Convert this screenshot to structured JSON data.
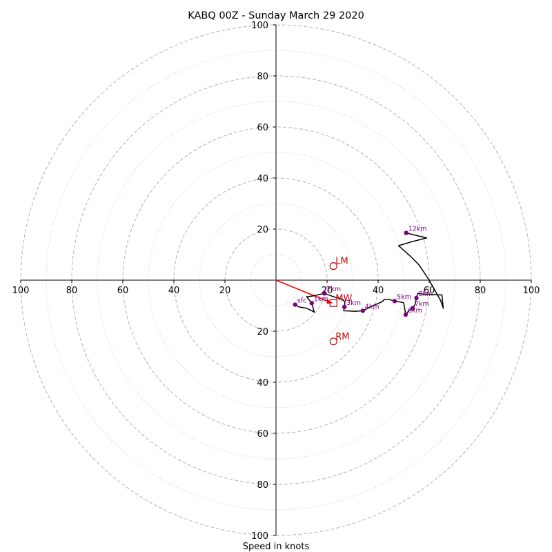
{
  "chart_data": {
    "type": "hodograph",
    "title": "KABQ 00Z - Sunday March 29 2020",
    "xlabel": "Speed in knots",
    "ylabel": "",
    "xlim": [
      -100,
      100
    ],
    "ylim": [
      -100,
      100
    ],
    "rings_major": [
      20,
      40,
      60,
      80,
      100
    ],
    "rings_minor": [
      10,
      30,
      50,
      70,
      90
    ],
    "axis_ticks": {
      "right": [
        20,
        40,
        60,
        80,
        100
      ],
      "left": [
        20,
        40,
        60,
        80,
        100
      ],
      "up": [
        20,
        40,
        60,
        80,
        100
      ],
      "down": [
        20,
        40,
        60,
        80,
        100
      ]
    },
    "grid": true,
    "colors": {
      "hodograph": "#000000",
      "height_markers": "#800080",
      "storm_motion": "#cc0000",
      "mean_wind_vector": "#ff0000",
      "ring_major": "#b8b8b8",
      "ring_minor": "#d0d0d0"
    },
    "hodograph_trace": [
      [
        7.5,
        -9.6
      ],
      [
        9,
        -10.5
      ],
      [
        12,
        -11
      ],
      [
        15,
        -12.5
      ],
      [
        14,
        -9
      ],
      [
        12,
        -6.5
      ],
      [
        14.5,
        -6.2
      ],
      [
        19,
        -5.2
      ],
      [
        22,
        -6.3
      ],
      [
        26,
        -7.5
      ],
      [
        27,
        -8.5
      ],
      [
        26.8,
        -10.5
      ],
      [
        26.5,
        -12
      ],
      [
        31,
        -12.2
      ],
      [
        34,
        -12
      ],
      [
        38,
        -10
      ],
      [
        41.5,
        -8.5
      ],
      [
        42.5,
        -7.5
      ],
      [
        44,
        -7.5
      ],
      [
        46.5,
        -8.2
      ],
      [
        50,
        -8.8
      ],
      [
        50.8,
        -13.5
      ],
      [
        52,
        -12
      ],
      [
        53.5,
        -11
      ],
      [
        54.5,
        -9.5
      ],
      [
        55,
        -7
      ],
      [
        55.5,
        -5.2
      ],
      [
        58,
        -5.5
      ],
      [
        65,
        -5.8
      ],
      [
        65.5,
        -11
      ],
      [
        64.5,
        -8
      ],
      [
        60,
        0
      ],
      [
        56,
        6
      ],
      [
        52.5,
        9.5
      ],
      [
        48,
        13.5
      ],
      [
        53,
        15
      ],
      [
        59,
        16.5
      ],
      [
        51,
        18.5
      ]
    ],
    "height_markers": [
      {
        "label": "sfc",
        "u": 7.5,
        "v": -9.6
      },
      {
        "label": "1km",
        "u": 14,
        "v": -9
      },
      {
        "label": "2km",
        "u": 19,
        "v": -5.2
      },
      {
        "label": "3km",
        "u": 26.8,
        "v": -10.5
      },
      {
        "label": "4km",
        "u": 34,
        "v": -12
      },
      {
        "label": "5km",
        "u": 46.5,
        "v": -8.2
      },
      {
        "label": "6km",
        "u": 50.8,
        "v": -13.5
      },
      {
        "label": "7km",
        "u": 53.5,
        "v": -11
      },
      {
        "label": "8km",
        "u": 55,
        "v": -7
      },
      {
        "label": "12km",
        "u": 51,
        "v": 18.5
      }
    ],
    "storm_motions": [
      {
        "label": "LM",
        "u": 22.5,
        "v": 5.5,
        "marker": "circle"
      },
      {
        "label": "RM",
        "u": 22.5,
        "v": -24,
        "marker": "circle"
      },
      {
        "label": "MW",
        "u": 22.5,
        "v": -9,
        "marker": "square"
      }
    ],
    "mean_wind_vector": {
      "from": [
        0,
        0
      ],
      "to": [
        22,
        -9
      ]
    }
  }
}
